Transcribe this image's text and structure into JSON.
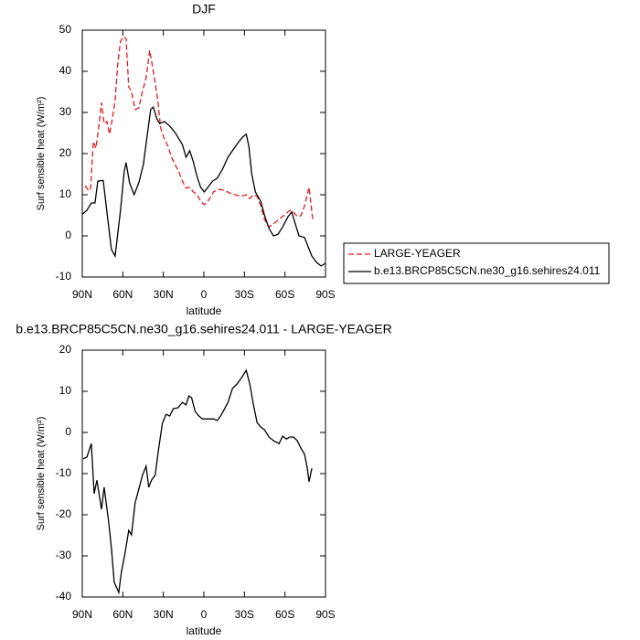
{
  "chart_data": [
    {
      "type": "line",
      "title": "DJF",
      "xlabel": "latitude",
      "ylabel": "Surf sensible heat (W/m²)",
      "xlim": [
        90,
        -90
      ],
      "xticks": [
        {
          "value": 90,
          "label": "90N"
        },
        {
          "value": 60,
          "label": "60N"
        },
        {
          "value": 30,
          "label": "30N"
        },
        0,
        {
          "value": -30,
          "label": "30S"
        },
        {
          "value": -60,
          "label": "60S"
        },
        {
          "value": -90,
          "label": "90S"
        }
      ],
      "ylim": [
        -10,
        50
      ],
      "yticks": [
        -10,
        0,
        10,
        20,
        30,
        40,
        50
      ],
      "legend": "right",
      "series": [
        {
          "name": "LARGE-YEAGER",
          "color": "#e41a1c",
          "style": "dashed",
          "x": [
            88.0,
            86.0,
            83.9,
            81.9,
            79.9,
            77.9,
            75.8,
            73.8,
            71.8,
            69.8,
            67.8,
            65.7,
            63.7,
            61.7,
            59.7,
            57.6,
            55.6,
            53.6,
            50.9,
            48.2,
            45.5,
            42.8,
            40.1,
            38.1,
            36.1,
            34.1,
            32.0,
            29.3,
            26.6,
            23.9,
            21.3,
            18.6,
            15.9,
            13.2,
            10.5,
            7.8,
            5.1,
            2.4,
            -0.3,
            -3.0,
            -7.1,
            -11.1,
            -15.1,
            -19.2,
            -23.2,
            -27.3,
            -31.3,
            -34.0,
            -36.7,
            -39.4,
            -42.1,
            -44.8,
            -48.2,
            -51.5,
            -55.6,
            -59.6,
            -63.7,
            -66.4,
            -69.1,
            -71.8,
            -74.5,
            -77.8,
            -80.5
          ],
          "values": [
            12.2,
            11.3,
            11.1,
            22.9,
            21.3,
            26.2,
            32.4,
            27.3,
            27.8,
            24.7,
            28.4,
            32.9,
            42.2,
            47.3,
            48.4,
            48.0,
            36.2,
            35.1,
            30.7,
            31.1,
            35.1,
            38.4,
            45.1,
            41.3,
            37.3,
            32.9,
            26.2,
            23.6,
            21.8,
            19.1,
            17.3,
            15.6,
            13.3,
            11.6,
            11.8,
            10.7,
            10.0,
            8.4,
            7.6,
            8.4,
            10.7,
            11.3,
            11.1,
            10.4,
            10.0,
            9.6,
            10.0,
            9.1,
            10.0,
            9.6,
            7.3,
            4.0,
            2.2,
            2.9,
            4.0,
            5.1,
            6.2,
            5.8,
            4.7,
            4.9,
            7.3,
            11.8,
            4.0
          ]
        },
        {
          "name": "b.e13.BRCP85C5CN.ne30_g16.sehires24.011",
          "color": "#000000",
          "style": "solid",
          "x": [
            90.0,
            86.6,
            83.3,
            80.6,
            78.5,
            74.5,
            71.1,
            68.4,
            65.7,
            61.7,
            59.0,
            57.6,
            55.0,
            51.6,
            48.2,
            44.8,
            41.5,
            39.4,
            37.4,
            34.7,
            32.7,
            29.3,
            25.3,
            21.3,
            17.9,
            15.9,
            13.2,
            10.5,
            7.8,
            5.1,
            2.4,
            -0.3,
            -3.0,
            -6.4,
            -9.8,
            -13.8,
            -17.8,
            -21.9,
            -25.9,
            -28.6,
            -31.3,
            -33.3,
            -35.4,
            -38.1,
            -42.1,
            -44.8,
            -48.2,
            -51.5,
            -54.9,
            -58.3,
            -62.3,
            -65.0,
            -67.7,
            -70.4,
            -74.5,
            -77.2,
            -79.9,
            -83.3,
            -86.6,
            -90.0
          ],
          "values": [
            5.3,
            6.2,
            8.0,
            8.0,
            13.3,
            13.5,
            4.0,
            -3.3,
            -4.9,
            6.2,
            15.6,
            17.8,
            12.9,
            10.0,
            12.9,
            17.3,
            25.6,
            30.7,
            31.3,
            28.4,
            27.3,
            27.8,
            26.7,
            25.1,
            23.3,
            22.2,
            19.1,
            20.7,
            18.0,
            14.4,
            11.8,
            10.7,
            11.8,
            13.3,
            14.0,
            16.2,
            19.1,
            21.1,
            22.9,
            24.0,
            24.7,
            21.8,
            15.1,
            10.7,
            8.4,
            5.1,
            1.8,
            0.0,
            0.4,
            2.2,
            4.7,
            5.8,
            2.9,
            0.0,
            -0.4,
            -2.7,
            -4.9,
            -6.4,
            -7.3,
            -6.7
          ]
        }
      ]
    },
    {
      "type": "line",
      "title": "b.e13.BRCP85C5CN.ne30_g16.sehires24.011 - LARGE-YEAGER",
      "xlabel": "latitude",
      "ylabel": "Surf sensible heat (W/m²)",
      "xlim": [
        90,
        -90
      ],
      "xticks": [
        {
          "value": 90,
          "label": "90N"
        },
        {
          "value": 60,
          "label": "60N"
        },
        {
          "value": 30,
          "label": "30N"
        },
        0,
        {
          "value": -30,
          "label": "30S"
        },
        {
          "value": -60,
          "label": "60S"
        },
        {
          "value": -90,
          "label": "90S"
        }
      ],
      "ylim": [
        -40,
        20
      ],
      "yticks": [
        -40,
        -30,
        -20,
        -10,
        0,
        10,
        20
      ],
      "series": [
        {
          "color": "#000000",
          "style": "solid",
          "x": [
            89.3,
            86.6,
            83.3,
            81.2,
            79.2,
            75.8,
            73.8,
            70.5,
            68.4,
            66.4,
            63.0,
            61.0,
            58.3,
            55.6,
            53.6,
            50.9,
            48.2,
            45.5,
            42.8,
            40.8,
            38.8,
            36.1,
            33.4,
            30.7,
            28.0,
            25.3,
            22.6,
            19.2,
            15.9,
            13.2,
            11.1,
            9.1,
            6.4,
            3.7,
            1.0,
            -3.0,
            -7.1,
            -9.8,
            -12.4,
            -15.1,
            -17.8,
            -21.2,
            -24.6,
            -27.9,
            -31.3,
            -34.0,
            -36.7,
            -39.4,
            -42.1,
            -44.8,
            -48.2,
            -51.5,
            -55.6,
            -58.3,
            -61.0,
            -63.7,
            -66.4,
            -69.1,
            -71.8,
            -74.5,
            -76.5,
            -77.8,
            -79.9
          ],
          "values": [
            -6.4,
            -6.0,
            -2.7,
            -14.9,
            -11.6,
            -18.7,
            -13.3,
            -21.6,
            -28.2,
            -36.4,
            -38.9,
            -33.8,
            -29.3,
            -23.8,
            -24.9,
            -17.1,
            -13.8,
            -10.4,
            -8.2,
            -13.3,
            -11.6,
            -10.4,
            -3.8,
            2.2,
            4.4,
            4.0,
            5.8,
            6.0,
            7.3,
            6.7,
            8.9,
            8.4,
            5.1,
            4.0,
            3.3,
            3.3,
            3.3,
            2.9,
            4.0,
            5.6,
            7.3,
            10.7,
            11.8,
            13.3,
            15.1,
            11.8,
            6.7,
            2.4,
            1.3,
            0.7,
            -1.1,
            -2.0,
            -2.7,
            -0.9,
            -1.6,
            -1.1,
            -1.1,
            -2.0,
            -3.8,
            -5.3,
            -8.7,
            -12.0,
            -8.7
          ]
        }
      ]
    }
  ]
}
